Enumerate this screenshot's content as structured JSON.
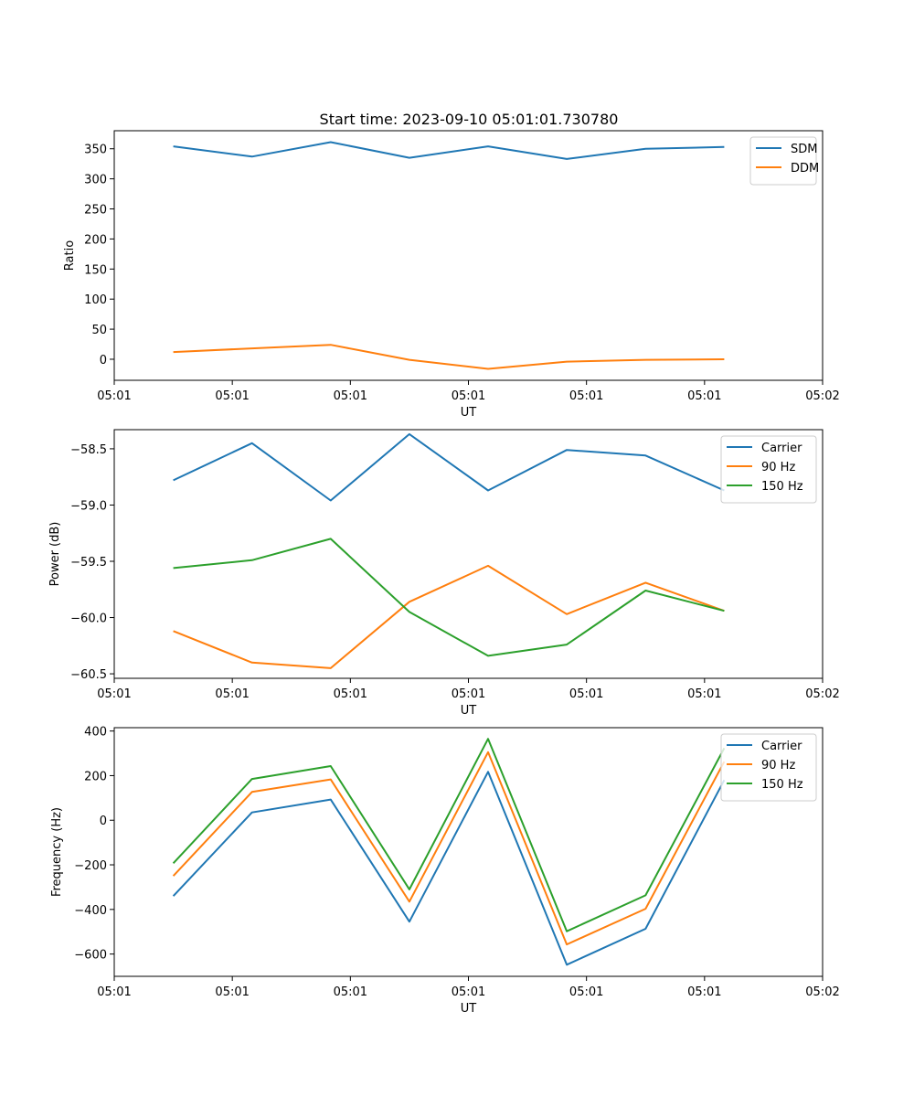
{
  "title": "Start time: 2023-09-10 05:01:01.730780",
  "chart_data": [
    {
      "type": "line",
      "xlabel": "UT",
      "ylabel": "Ratio",
      "xlim": [
        -0.75,
        8.25
      ],
      "ylim": [
        -35,
        380
      ],
      "x": [
        0,
        1,
        2,
        3,
        4,
        5,
        6,
        7
      ],
      "xticks": [
        -0.75,
        0.75,
        2.25,
        3.75,
        5.25,
        6.75,
        8.25
      ],
      "xtick_labels": [
        "05:01",
        "05:01",
        "05:01",
        "05:01",
        "05:01",
        "05:01",
        "05:02"
      ],
      "yticks": [
        0,
        50,
        100,
        150,
        200,
        250,
        300,
        350
      ],
      "ytick_labels": [
        "0",
        "50",
        "100",
        "150",
        "200",
        "250",
        "300",
        "350"
      ],
      "legend_position": "top-right",
      "series": [
        {
          "name": "SDM",
          "color": "#1f77b4",
          "values": [
            354,
            337,
            361,
            335,
            354,
            333,
            350,
            353
          ]
        },
        {
          "name": "DDM",
          "color": "#ff7f0e",
          "values": [
            12,
            18,
            24,
            -1,
            -16,
            -4,
            -1,
            0
          ]
        }
      ]
    },
    {
      "type": "line",
      "xlabel": "UT",
      "ylabel": "Power (dB)",
      "xlim": [
        -0.75,
        8.25
      ],
      "ylim": [
        -60.54,
        -58.33
      ],
      "x": [
        0,
        1,
        2,
        3,
        4,
        5,
        6,
        7
      ],
      "xticks": [
        -0.75,
        0.75,
        2.25,
        3.75,
        5.25,
        6.75,
        8.25
      ],
      "xtick_labels": [
        "05:01",
        "05:01",
        "05:01",
        "05:01",
        "05:01",
        "05:01",
        "05:02"
      ],
      "yticks": [
        -60.5,
        -60.0,
        -59.5,
        -59.0,
        -58.5
      ],
      "ytick_labels": [
        "−60.5",
        "−60.0",
        "−59.5",
        "−59.0",
        "−58.5"
      ],
      "legend_position": "top-right",
      "series": [
        {
          "name": "Carrier",
          "color": "#1f77b4",
          "values": [
            -58.78,
            -58.45,
            -58.96,
            -58.37,
            -58.87,
            -58.51,
            -58.56,
            -58.87
          ]
        },
        {
          "name": "90 Hz",
          "color": "#ff7f0e",
          "values": [
            -60.12,
            -60.4,
            -60.45,
            -59.86,
            -59.54,
            -59.97,
            -59.69,
            -59.94
          ]
        },
        {
          "name": "150 Hz",
          "color": "#2ca02c",
          "values": [
            -59.56,
            -59.49,
            -59.3,
            -59.95,
            -60.34,
            -60.24,
            -59.76,
            -59.94
          ]
        }
      ]
    },
    {
      "type": "line",
      "xlabel": "UT",
      "ylabel": "Frequency (Hz)",
      "xlim": [
        -0.75,
        8.25
      ],
      "ylim": [
        -700,
        415
      ],
      "x": [
        0,
        1,
        2,
        3,
        4,
        5,
        6,
        7
      ],
      "xticks": [
        -0.75,
        0.75,
        2.25,
        3.75,
        5.25,
        6.75,
        8.25
      ],
      "xtick_labels": [
        "05:01",
        "05:01",
        "05:01",
        "05:01",
        "05:01",
        "05:01",
        "05:02"
      ],
      "yticks": [
        -600,
        -400,
        -200,
        0,
        200,
        400
      ],
      "ytick_labels": [
        "−600",
        "−400",
        "−200",
        "0",
        "200",
        "400"
      ],
      "legend_position": "top-right",
      "series": [
        {
          "name": "Carrier",
          "color": "#1f77b4",
          "values": [
            -340,
            35,
            93,
            -455,
            217,
            -648,
            -487,
            180
          ]
        },
        {
          "name": "90 Hz",
          "color": "#ff7f0e",
          "values": [
            -250,
            127,
            183,
            -365,
            305,
            -557,
            -397,
            263
          ]
        },
        {
          "name": "150 Hz",
          "color": "#2ca02c",
          "values": [
            -193,
            185,
            243,
            -310,
            365,
            -498,
            -337,
            323
          ]
        }
      ]
    }
  ]
}
